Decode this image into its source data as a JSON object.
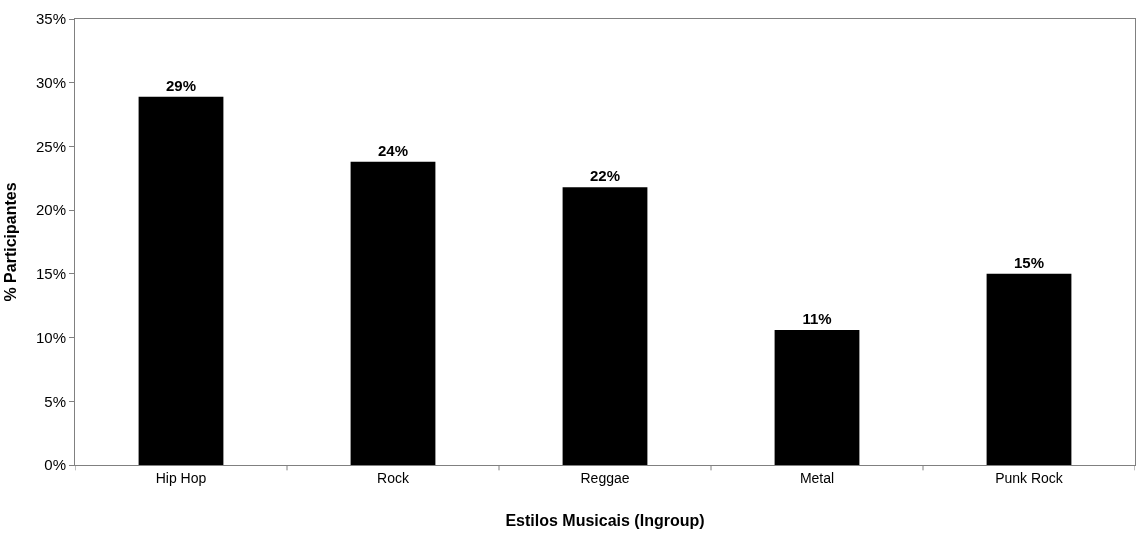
{
  "chart_data": {
    "type": "bar",
    "xlabel": "Estilos Musicais (Ingroup)",
    "ylabel": "% Participantes",
    "categories": [
      "Hip Hop",
      "Rock",
      "Reggae",
      "Metal",
      "Punk Rock"
    ],
    "values": [
      28.9,
      23.8,
      21.8,
      10.6,
      15.0
    ],
    "value_labels": [
      "29%",
      "24%",
      "22%",
      "11%",
      "15%"
    ],
    "color": "#000000",
    "ylim": [
      0,
      35
    ],
    "yticks": [
      {
        "value": 0,
        "label": "0%"
      },
      {
        "value": 5,
        "label": "5%"
      },
      {
        "value": 10,
        "label": "10%"
      },
      {
        "value": 15,
        "label": "15%"
      },
      {
        "value": 20,
        "label": "20%"
      },
      {
        "value": 25,
        "label": "25%"
      },
      {
        "value": 30,
        "label": "30%"
      },
      {
        "value": 35,
        "label": "35%"
      }
    ],
    "grid": false
  }
}
